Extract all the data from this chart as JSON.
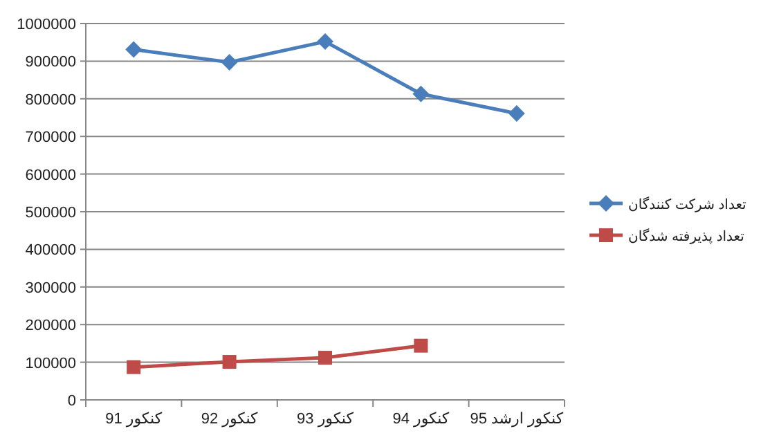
{
  "chart_data": {
    "type": "line",
    "categories": [
      "کنکور 91",
      "کنکور 92",
      "کنکور 93",
      "کنکور 94",
      "کنکور ارشد 95"
    ],
    "series": [
      {
        "name": "تعداد شرکت کنندگان",
        "color": "#4a7ebb",
        "marker": "diamond",
        "values": [
          931000,
          897000,
          952000,
          813000,
          761000
        ]
      },
      {
        "name": "تعداد پذیرفته شدگان",
        "color": "#be4b48",
        "marker": "square",
        "values": [
          87000,
          101000,
          112000,
          144000,
          null
        ]
      }
    ],
    "ylim": [
      0,
      1000000
    ],
    "yticks": [
      0,
      100000,
      200000,
      300000,
      400000,
      500000,
      600000,
      700000,
      800000,
      900000,
      1000000
    ],
    "grid": "y",
    "legend": "right"
  }
}
